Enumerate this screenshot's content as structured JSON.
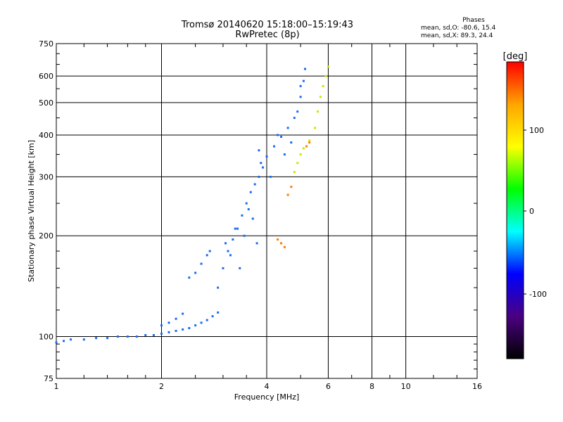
{
  "header": {
    "title_line1": "Tromsø 20140620 15:18:00–15:19:43",
    "title_line2": "RwPretec (8p)"
  },
  "phases_box": {
    "title": "Phases",
    "line1": "mean, sd,O: -80.6, 15.4",
    "line2": "mean, sd,X:  89.3, 24.4"
  },
  "colorbar": {
    "label": "[deg]",
    "ticks": [
      "100",
      "0",
      "-100"
    ],
    "colors": [
      "#ff0000",
      "#ffa500",
      "#ffff00",
      "#00ff00",
      "#00ffff",
      "#0000ff",
      "#4b0082",
      "#000000"
    ]
  },
  "chart_data": {
    "type": "scatter",
    "xlabel": "Frequency [MHz]",
    "ylabel": "Stationary phase Virtual Height [km]",
    "x_scale": "log",
    "y_scale": "log",
    "xlim": [
      1,
      16
    ],
    "ylim": [
      75,
      750
    ],
    "xticks": [
      1,
      2,
      4,
      6,
      8,
      10,
      16
    ],
    "yticks": [
      75,
      100,
      200,
      300,
      400,
      500,
      600,
      750
    ],
    "grid": true,
    "series": [
      {
        "color": "#1a6cf0",
        "points": [
          [
            1.0,
            96
          ],
          [
            1.05,
            97
          ],
          [
            1.1,
            98
          ],
          [
            1.2,
            98
          ],
          [
            1.3,
            99
          ],
          [
            1.4,
            99
          ],
          [
            1.5,
            100
          ],
          [
            1.6,
            100
          ],
          [
            1.7,
            100
          ],
          [
            1.8,
            101
          ],
          [
            1.9,
            101
          ],
          [
            2.0,
            102
          ],
          [
            2.1,
            103
          ],
          [
            2.2,
            104
          ],
          [
            2.3,
            105
          ],
          [
            2.4,
            106
          ],
          [
            2.5,
            108
          ],
          [
            2.6,
            110
          ],
          [
            2.7,
            112
          ],
          [
            2.8,
            115
          ],
          [
            2.9,
            118
          ],
          [
            2.0,
            108
          ],
          [
            2.1,
            110
          ],
          [
            2.2,
            113
          ],
          [
            2.3,
            117
          ],
          [
            2.4,
            150
          ],
          [
            2.5,
            155
          ],
          [
            2.6,
            165
          ],
          [
            2.7,
            175
          ],
          [
            2.75,
            180
          ],
          [
            2.9,
            140
          ],
          [
            3.0,
            160
          ],
          [
            3.1,
            180
          ],
          [
            3.2,
            195
          ],
          [
            3.3,
            210
          ],
          [
            3.4,
            230
          ],
          [
            3.5,
            250
          ],
          [
            3.6,
            270
          ],
          [
            3.7,
            285
          ],
          [
            3.8,
            300
          ],
          [
            3.9,
            320
          ],
          [
            4.0,
            345
          ],
          [
            4.2,
            370
          ],
          [
            4.4,
            395
          ],
          [
            4.6,
            420
          ],
          [
            4.8,
            450
          ],
          [
            5.0,
            520
          ],
          [
            5.1,
            580
          ],
          [
            5.15,
            630
          ],
          [
            3.05,
            190
          ],
          [
            3.15,
            175
          ],
          [
            3.25,
            210
          ],
          [
            3.35,
            160
          ],
          [
            3.45,
            200
          ],
          [
            3.55,
            240
          ],
          [
            3.65,
            225
          ],
          [
            3.75,
            190
          ],
          [
            3.8,
            360
          ],
          [
            3.85,
            330
          ],
          [
            4.1,
            300
          ],
          [
            4.3,
            400
          ],
          [
            4.5,
            350
          ],
          [
            4.7,
            380
          ],
          [
            4.9,
            470
          ],
          [
            5.0,
            560
          ]
        ]
      },
      {
        "color": "#ff7b00",
        "points": [
          [
            4.3,
            195
          ],
          [
            4.4,
            190
          ],
          [
            4.5,
            185
          ],
          [
            4.6,
            265
          ],
          [
            4.7,
            280
          ],
          [
            5.2,
            370
          ],
          [
            5.3,
            380
          ]
        ]
      },
      {
        "color": "#cde600",
        "points": [
          [
            4.8,
            310
          ],
          [
            4.9,
            330
          ],
          [
            5.0,
            350
          ],
          [
            5.1,
            365
          ],
          [
            5.3,
            385
          ],
          [
            5.5,
            420
          ],
          [
            5.6,
            470
          ],
          [
            5.7,
            520
          ],
          [
            5.8,
            560
          ],
          [
            5.9,
            600
          ],
          [
            6.0,
            640
          ]
        ]
      }
    ]
  }
}
